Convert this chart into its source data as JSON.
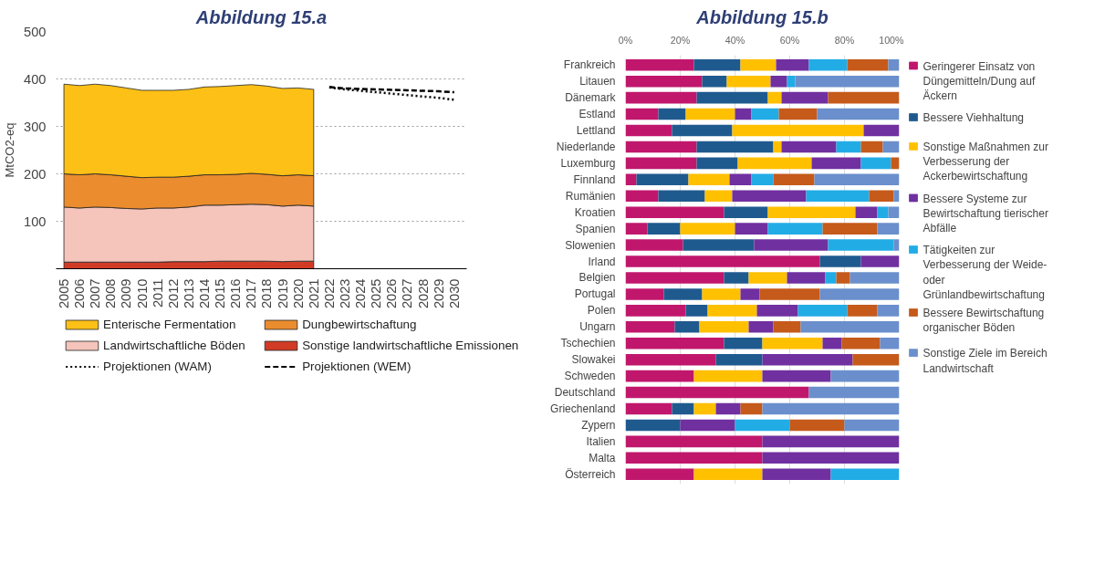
{
  "chart_data": [
    {
      "type": "area",
      "title": "Abbildung 15.a",
      "ylabel": "MtCO2-eq",
      "stacked": true,
      "x": [
        2005,
        2006,
        2007,
        2008,
        2009,
        2010,
        2011,
        2012,
        2013,
        2014,
        2015,
        2016,
        2017,
        2018,
        2019,
        2020,
        2021
      ],
      "series": [
        {
          "name": "Sonstige landwirtschaftliche Emissionen",
          "color": "#d13b26",
          "values": [
            14,
            14,
            14,
            14,
            14,
            14,
            14,
            15,
            15,
            15,
            16,
            16,
            16,
            16,
            15,
            16,
            16
          ]
        },
        {
          "name": "Landwirtschaftliche Böden",
          "color": "#f5c4bb",
          "values": [
            116,
            114,
            116,
            115,
            113,
            112,
            114,
            113,
            115,
            119,
            118,
            119,
            120,
            119,
            117,
            118,
            116
          ]
        },
        {
          "name": "Dungbewirtschaftung",
          "color": "#eb8c2e",
          "values": [
            70,
            70,
            70,
            69,
            68,
            66,
            65,
            65,
            65,
            64,
            64,
            64,
            65,
            64,
            64,
            64,
            64
          ]
        },
        {
          "name": "Enterische Fermentation",
          "color": "#fcc017",
          "values": [
            189,
            188,
            189,
            188,
            186,
            184,
            183,
            183,
            183,
            185,
            186,
            187,
            187,
            186,
            184,
            183,
            182
          ]
        },
        {
          "name": "Projektionen (WAM)",
          "type": "line",
          "line_style": "dotted",
          "color": "#000000",
          "x": [
            2022,
            2023,
            2024,
            2025,
            2026,
            2027,
            2028,
            2029,
            2030
          ],
          "values": [
            382,
            378,
            375,
            372,
            369,
            366,
            363,
            360,
            356
          ]
        },
        {
          "name": "Projektionen (WEM)",
          "type": "line",
          "line_style": "dashed",
          "color": "#000000",
          "x": [
            2022,
            2023,
            2024,
            2025,
            2026,
            2027,
            2028,
            2029,
            2030
          ],
          "values": [
            383,
            380,
            379,
            378,
            377,
            376,
            375,
            374,
            372
          ]
        }
      ],
      "xlim": [
        2004.5,
        2030.8
      ],
      "xticks": [
        2005,
        2006,
        2007,
        2008,
        2009,
        2010,
        2011,
        2012,
        2013,
        2014,
        2015,
        2016,
        2017,
        2018,
        2019,
        2020,
        2021,
        2022,
        2023,
        2024,
        2025,
        2026,
        2027,
        2028,
        2029,
        2030
      ],
      "ylim": [
        0,
        500
      ],
      "yticks": [
        100,
        200,
        300,
        400,
        500
      ],
      "grid": "y",
      "legend": "bottom"
    },
    {
      "type": "bar",
      "title": "Abbildung 15.b",
      "orientation": "horizontal",
      "stacked": true,
      "categories": [
        "Frankreich",
        "Litauen",
        "Dänemark",
        "Estland",
        "Lettland",
        "Niederlande",
        "Luxemburg",
        "Finnland",
        "Rumänien",
        "Kroatien",
        "Spanien",
        "Slowenien",
        "Irland",
        "Belgien",
        "Portugal",
        "Polen",
        "Ungarn",
        "Tschechien",
        "Slowakei",
        "Schweden",
        "Deutschland",
        "Griechenland",
        "Zypern",
        "Italien",
        "Malta",
        "Österreich"
      ],
      "series": [
        {
          "name": "Geringerer Einsatz von Düngemitteln/Dung auf Äckern",
          "color": "#c0176c",
          "values": [
            25,
            28,
            26,
            12,
            17,
            26,
            26,
            4,
            12,
            36,
            8,
            21,
            71,
            36,
            14,
            22,
            18,
            36,
            33,
            25,
            67,
            17,
            0,
            50,
            50,
            25
          ]
        },
        {
          "name": "Bessere Viehhaltung",
          "color": "#1f5a8f",
          "values": [
            17,
            9,
            26,
            10,
            22,
            28,
            15,
            19,
            17,
            16,
            12,
            26,
            15,
            9,
            14,
            8,
            9,
            14,
            17,
            0,
            0,
            8,
            20,
            0,
            0,
            0
          ]
        },
        {
          "name": "Sonstige Maßnahmen zur Verbesserung der Ackerbewirtschaftung",
          "color": "#ffc000",
          "values": [
            13,
            16,
            5,
            18,
            48,
            3,
            27,
            15,
            10,
            32,
            20,
            0,
            0,
            14,
            14,
            18,
            18,
            22,
            0,
            25,
            0,
            8,
            0,
            0,
            0,
            25
          ]
        },
        {
          "name": "Bessere Systeme zur Bewirtschaftung tierischer Abfälle",
          "color": "#7030a0",
          "values": [
            12,
            6,
            17,
            6,
            13,
            20,
            18,
            8,
            27,
            8,
            12,
            27,
            14,
            14,
            7,
            15,
            9,
            7,
            33,
            25,
            0,
            9,
            20,
            50,
            50,
            25
          ]
        },
        {
          "name": "Tätigkeiten zur Verbesserung der Weide- oder Grünlandbewirtschaftung",
          "color": "#22ace6",
          "values": [
            14,
            3,
            0,
            10,
            0,
            9,
            11,
            8,
            23,
            4,
            20,
            24,
            0,
            4,
            0,
            18,
            0,
            0,
            0,
            0,
            0,
            0,
            20,
            0,
            0,
            25
          ]
        },
        {
          "name": "Bessere Bewirtschaftung organischer Böden",
          "color": "#c55a1b",
          "values": [
            15,
            0,
            26,
            14,
            0,
            8,
            3,
            15,
            9,
            0,
            20,
            0,
            0,
            5,
            22,
            11,
            10,
            14,
            17,
            0,
            0,
            8,
            20,
            0,
            0,
            0
          ]
        },
        {
          "name": "Sonstige Ziele im Bereich Landwirtschaft",
          "color": "#6a8fcc",
          "values": [
            4,
            38,
            0,
            30,
            0,
            6,
            0,
            31,
            2,
            4,
            8,
            2,
            0,
            18,
            29,
            8,
            36,
            7,
            0,
            25,
            33,
            50,
            20,
            0,
            0,
            0
          ]
        }
      ],
      "xlim": [
        0,
        100
      ],
      "xticks": [
        {
          "value": 0,
          "label": "0%"
        },
        {
          "value": 20,
          "label": "20%"
        },
        {
          "value": 40,
          "label": "40%"
        },
        {
          "value": 60,
          "label": "60%"
        },
        {
          "value": 80,
          "label": "80%"
        },
        {
          "value": 100,
          "label": "100%"
        }
      ],
      "grid": "x",
      "legend": "right"
    }
  ]
}
